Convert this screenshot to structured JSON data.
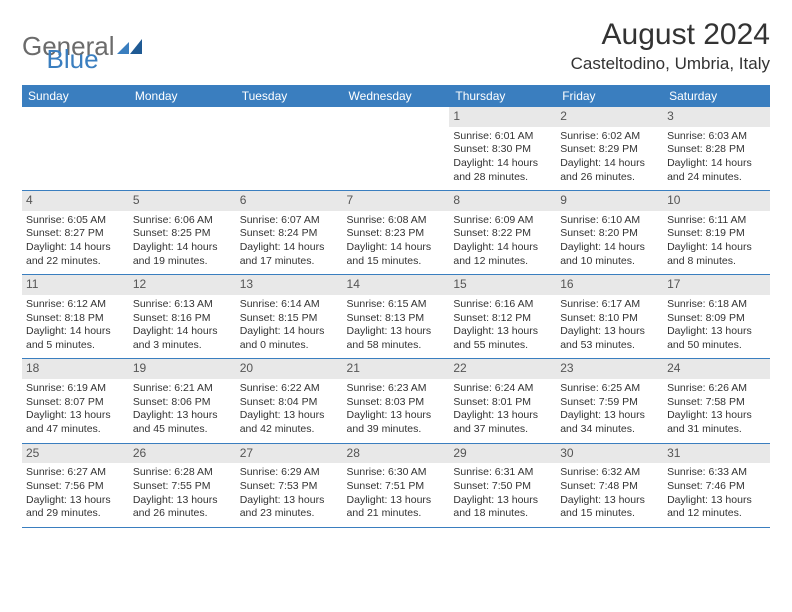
{
  "logo": {
    "word1": "General",
    "word2": "Blue"
  },
  "title": "August 2024",
  "location": "Casteltodino, Umbria, Italy",
  "colors": {
    "header_bg": "#3a7ebf",
    "header_text": "#ffffff",
    "daynum_bg": "#e8e8e8",
    "border": "#3a7ebf",
    "text": "#333333",
    "logo_gray": "#6b6b6b",
    "logo_blue": "#3a7ebf",
    "background": "#ffffff"
  },
  "day_headers": [
    "Sunday",
    "Monday",
    "Tuesday",
    "Wednesday",
    "Thursday",
    "Friday",
    "Saturday"
  ],
  "weeks": [
    {
      "nums": [
        "",
        "",
        "",
        "",
        "1",
        "2",
        "3"
      ],
      "cells": [
        {
          "empty": true
        },
        {
          "empty": true
        },
        {
          "empty": true
        },
        {
          "empty": true
        },
        {
          "sunrise": "Sunrise: 6:01 AM",
          "sunset": "Sunset: 8:30 PM",
          "daylight": "Daylight: 14 hours and 28 minutes."
        },
        {
          "sunrise": "Sunrise: 6:02 AM",
          "sunset": "Sunset: 8:29 PM",
          "daylight": "Daylight: 14 hours and 26 minutes."
        },
        {
          "sunrise": "Sunrise: 6:03 AM",
          "sunset": "Sunset: 8:28 PM",
          "daylight": "Daylight: 14 hours and 24 minutes."
        }
      ]
    },
    {
      "nums": [
        "4",
        "5",
        "6",
        "7",
        "8",
        "9",
        "10"
      ],
      "cells": [
        {
          "sunrise": "Sunrise: 6:05 AM",
          "sunset": "Sunset: 8:27 PM",
          "daylight": "Daylight: 14 hours and 22 minutes."
        },
        {
          "sunrise": "Sunrise: 6:06 AM",
          "sunset": "Sunset: 8:25 PM",
          "daylight": "Daylight: 14 hours and 19 minutes."
        },
        {
          "sunrise": "Sunrise: 6:07 AM",
          "sunset": "Sunset: 8:24 PM",
          "daylight": "Daylight: 14 hours and 17 minutes."
        },
        {
          "sunrise": "Sunrise: 6:08 AM",
          "sunset": "Sunset: 8:23 PM",
          "daylight": "Daylight: 14 hours and 15 minutes."
        },
        {
          "sunrise": "Sunrise: 6:09 AM",
          "sunset": "Sunset: 8:22 PM",
          "daylight": "Daylight: 14 hours and 12 minutes."
        },
        {
          "sunrise": "Sunrise: 6:10 AM",
          "sunset": "Sunset: 8:20 PM",
          "daylight": "Daylight: 14 hours and 10 minutes."
        },
        {
          "sunrise": "Sunrise: 6:11 AM",
          "sunset": "Sunset: 8:19 PM",
          "daylight": "Daylight: 14 hours and 8 minutes."
        }
      ]
    },
    {
      "nums": [
        "11",
        "12",
        "13",
        "14",
        "15",
        "16",
        "17"
      ],
      "cells": [
        {
          "sunrise": "Sunrise: 6:12 AM",
          "sunset": "Sunset: 8:18 PM",
          "daylight": "Daylight: 14 hours and 5 minutes."
        },
        {
          "sunrise": "Sunrise: 6:13 AM",
          "sunset": "Sunset: 8:16 PM",
          "daylight": "Daylight: 14 hours and 3 minutes."
        },
        {
          "sunrise": "Sunrise: 6:14 AM",
          "sunset": "Sunset: 8:15 PM",
          "daylight": "Daylight: 14 hours and 0 minutes."
        },
        {
          "sunrise": "Sunrise: 6:15 AM",
          "sunset": "Sunset: 8:13 PM",
          "daylight": "Daylight: 13 hours and 58 minutes."
        },
        {
          "sunrise": "Sunrise: 6:16 AM",
          "sunset": "Sunset: 8:12 PM",
          "daylight": "Daylight: 13 hours and 55 minutes."
        },
        {
          "sunrise": "Sunrise: 6:17 AM",
          "sunset": "Sunset: 8:10 PM",
          "daylight": "Daylight: 13 hours and 53 minutes."
        },
        {
          "sunrise": "Sunrise: 6:18 AM",
          "sunset": "Sunset: 8:09 PM",
          "daylight": "Daylight: 13 hours and 50 minutes."
        }
      ]
    },
    {
      "nums": [
        "18",
        "19",
        "20",
        "21",
        "22",
        "23",
        "24"
      ],
      "cells": [
        {
          "sunrise": "Sunrise: 6:19 AM",
          "sunset": "Sunset: 8:07 PM",
          "daylight": "Daylight: 13 hours and 47 minutes."
        },
        {
          "sunrise": "Sunrise: 6:21 AM",
          "sunset": "Sunset: 8:06 PM",
          "daylight": "Daylight: 13 hours and 45 minutes."
        },
        {
          "sunrise": "Sunrise: 6:22 AM",
          "sunset": "Sunset: 8:04 PM",
          "daylight": "Daylight: 13 hours and 42 minutes."
        },
        {
          "sunrise": "Sunrise: 6:23 AM",
          "sunset": "Sunset: 8:03 PM",
          "daylight": "Daylight: 13 hours and 39 minutes."
        },
        {
          "sunrise": "Sunrise: 6:24 AM",
          "sunset": "Sunset: 8:01 PM",
          "daylight": "Daylight: 13 hours and 37 minutes."
        },
        {
          "sunrise": "Sunrise: 6:25 AM",
          "sunset": "Sunset: 7:59 PM",
          "daylight": "Daylight: 13 hours and 34 minutes."
        },
        {
          "sunrise": "Sunrise: 6:26 AM",
          "sunset": "Sunset: 7:58 PM",
          "daylight": "Daylight: 13 hours and 31 minutes."
        }
      ]
    },
    {
      "nums": [
        "25",
        "26",
        "27",
        "28",
        "29",
        "30",
        "31"
      ],
      "cells": [
        {
          "sunrise": "Sunrise: 6:27 AM",
          "sunset": "Sunset: 7:56 PM",
          "daylight": "Daylight: 13 hours and 29 minutes."
        },
        {
          "sunrise": "Sunrise: 6:28 AM",
          "sunset": "Sunset: 7:55 PM",
          "daylight": "Daylight: 13 hours and 26 minutes."
        },
        {
          "sunrise": "Sunrise: 6:29 AM",
          "sunset": "Sunset: 7:53 PM",
          "daylight": "Daylight: 13 hours and 23 minutes."
        },
        {
          "sunrise": "Sunrise: 6:30 AM",
          "sunset": "Sunset: 7:51 PM",
          "daylight": "Daylight: 13 hours and 21 minutes."
        },
        {
          "sunrise": "Sunrise: 6:31 AM",
          "sunset": "Sunset: 7:50 PM",
          "daylight": "Daylight: 13 hours and 18 minutes."
        },
        {
          "sunrise": "Sunrise: 6:32 AM",
          "sunset": "Sunset: 7:48 PM",
          "daylight": "Daylight: 13 hours and 15 minutes."
        },
        {
          "sunrise": "Sunrise: 6:33 AM",
          "sunset": "Sunset: 7:46 PM",
          "daylight": "Daylight: 13 hours and 12 minutes."
        }
      ]
    }
  ]
}
